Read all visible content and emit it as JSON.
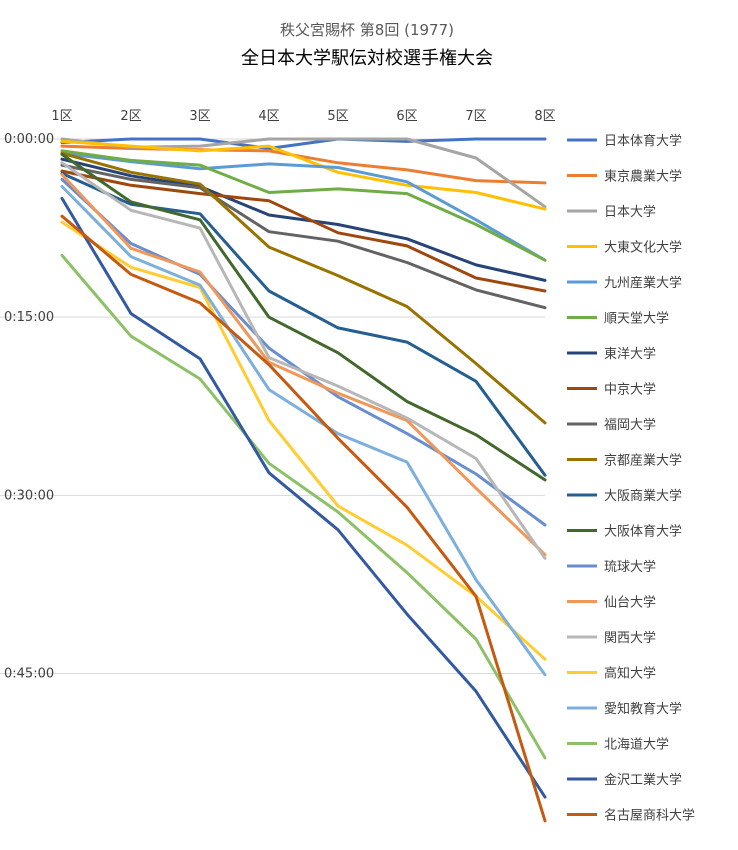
{
  "chart_data": {
    "type": "line",
    "title": "全日本大学駅伝対校選手権大会",
    "subtitle": "秩父宮賜杯 第8回 (1977)",
    "categories": [
      "1区",
      "2区",
      "3区",
      "4区",
      "5区",
      "6区",
      "7区",
      "8区"
    ],
    "y_axis": {
      "reversed": true,
      "unit": "minutes behind leader",
      "min": 0,
      "max": 57.5,
      "ticks": [
        0,
        15,
        30,
        45
      ],
      "tick_labels": [
        "0:00:00",
        "0:15:00",
        "0:30:00",
        "0:45:00"
      ],
      "gridlines": true
    },
    "legend_position": "right",
    "series": [
      {
        "name": "日本体育大学",
        "color": "#4472C4",
        "values": [
          0.3,
          0.0,
          0.0,
          0.8,
          0.0,
          0.2,
          0.0,
          0.0
        ]
      },
      {
        "name": "東京農業大学",
        "color": "#ED7D31",
        "values": [
          0.6,
          0.8,
          0.9,
          1.0,
          2.0,
          2.6,
          3.5,
          3.7
        ]
      },
      {
        "name": "日本大学",
        "color": "#A5A5A5",
        "values": [
          0.0,
          0.7,
          0.6,
          0.0,
          0.0,
          0.0,
          1.6,
          5.7
        ]
      },
      {
        "name": "大東文化大学",
        "color": "#FFC000",
        "values": [
          0.2,
          0.6,
          1.0,
          0.6,
          2.8,
          3.9,
          4.5,
          5.9
        ]
      },
      {
        "name": "九州産業大学",
        "color": "#5B9BD5",
        "values": [
          1.2,
          1.9,
          2.5,
          2.1,
          2.4,
          3.6,
          6.8,
          10.2
        ]
      },
      {
        "name": "順天堂大学",
        "color": "#70AD47",
        "values": [
          1.0,
          1.8,
          2.2,
          4.5,
          4.2,
          4.6,
          7.2,
          10.2
        ]
      },
      {
        "name": "東洋大学",
        "color": "#264478",
        "values": [
          1.7,
          3.1,
          4.0,
          6.4,
          7.2,
          8.4,
          10.6,
          11.9
        ]
      },
      {
        "name": "中京大学",
        "color": "#9E480E",
        "values": [
          2.7,
          3.9,
          4.6,
          5.2,
          7.9,
          9.0,
          11.7,
          12.8
        ]
      },
      {
        "name": "福岡大学",
        "color": "#636363",
        "values": [
          2.2,
          3.4,
          4.1,
          7.8,
          8.6,
          10.4,
          12.7,
          14.2
        ]
      },
      {
        "name": "京都産業大学",
        "color": "#997300",
        "values": [
          1.2,
          2.8,
          3.8,
          9.1,
          11.5,
          14.1,
          18.9,
          23.9
        ]
      },
      {
        "name": "大阪商業大学",
        "color": "#255E91",
        "values": [
          2.9,
          5.5,
          6.3,
          12.8,
          15.9,
          17.1,
          20.4,
          28.3
        ]
      },
      {
        "name": "大阪体育大学",
        "color": "#43682B",
        "values": [
          1.3,
          5.3,
          6.8,
          15.0,
          18.0,
          22.1,
          24.9,
          28.7
        ]
      },
      {
        "name": "琉球大学",
        "color": "#698ED0",
        "values": [
          3.4,
          8.8,
          11.4,
          17.6,
          21.7,
          24.8,
          28.2,
          32.5
        ]
      },
      {
        "name": "仙台大学",
        "color": "#F1975A",
        "values": [
          3.0,
          9.2,
          11.2,
          18.8,
          21.4,
          23.7,
          29.4,
          35.0
        ]
      },
      {
        "name": "関西大学",
        "color": "#B7B7B7",
        "values": [
          2.0,
          6.0,
          7.5,
          18.4,
          20.8,
          23.5,
          26.9,
          35.3
        ]
      },
      {
        "name": "高知大学",
        "color": "#FFCD33",
        "values": [
          7.0,
          10.8,
          12.5,
          23.7,
          30.9,
          34.2,
          38.5,
          43.8
        ]
      },
      {
        "name": "愛知教育大学",
        "color": "#7CAFDD",
        "values": [
          4.0,
          9.9,
          12.3,
          21.1,
          24.8,
          27.2,
          37.1,
          45.1
        ]
      },
      {
        "name": "北海道大学",
        "color": "#8CC168",
        "values": [
          9.8,
          16.6,
          20.2,
          27.3,
          31.4,
          36.5,
          42.1,
          52.1
        ]
      },
      {
        "name": "金沢工業大学",
        "color": "#335AA1",
        "values": [
          5.0,
          14.7,
          18.5,
          28.1,
          32.9,
          40.0,
          46.5,
          55.4
        ]
      },
      {
        "name": "名古屋商科大学",
        "color": "#C55A11",
        "values": [
          6.5,
          11.4,
          13.8,
          19.0,
          25.2,
          31.0,
          38.5,
          57.4
        ]
      }
    ]
  }
}
